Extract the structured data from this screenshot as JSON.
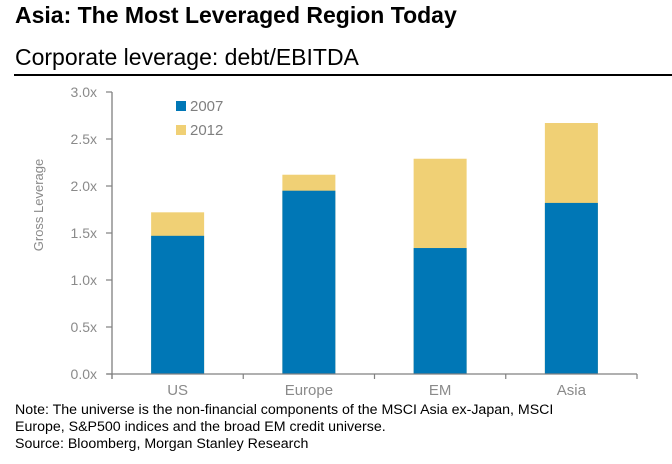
{
  "header": {
    "title": "Asia: The Most Leveraged Region Today",
    "subtitle": "Corporate leverage: debt/EBITDA"
  },
  "footer": {
    "note_line1": "Note: The universe is the non-financial components of the MSCI Asia ex-Japan, MSCI",
    "note_line2": "Europe, S&P500 indices and the broad EM credit universe.",
    "source": "Source: Bloomberg, Morgan Stanley Research"
  },
  "chart_data": {
    "type": "bar",
    "stacked": true,
    "title": "Asia: The Most Leveraged Region Today",
    "subtitle": "Corporate leverage: debt/EBITDA",
    "xlabel": "",
    "ylabel": "Gross Leverage",
    "categories": [
      "US",
      "Europe",
      "EM",
      "Asia"
    ],
    "series": [
      {
        "name": "2007",
        "color": "#0077b6",
        "values": [
          1.47,
          1.95,
          1.34,
          1.82
        ]
      },
      {
        "name": "2012",
        "color": "#f0d075",
        "values": [
          1.72,
          2.12,
          2.29,
          2.67
        ],
        "note": "values are 2012 leverage; drawn as the total bar height with 2007 overlaid"
      }
    ],
    "ylim": [
      0,
      3.0
    ],
    "yticks": [
      0,
      0.5,
      1.0,
      1.5,
      2.0,
      2.5,
      3.0
    ],
    "ytick_labels": [
      "0.0x",
      "0.5x",
      "1.0x",
      "1.5x",
      "2.0x",
      "2.5x",
      "3.0x"
    ],
    "grid": false,
    "legend": {
      "placement": "top-left",
      "entries": [
        "2007",
        "2012"
      ]
    }
  }
}
